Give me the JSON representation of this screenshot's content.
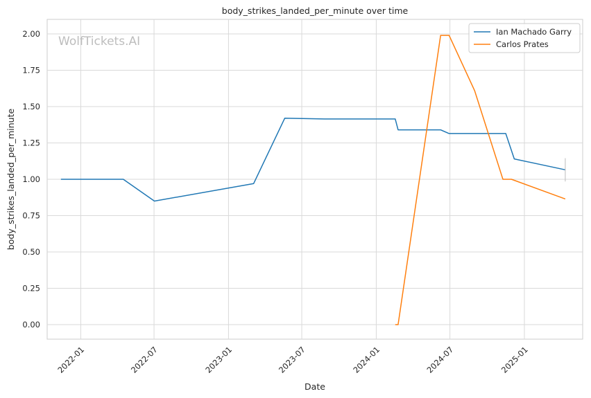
{
  "chart_data": {
    "type": "line",
    "title": "body_strikes_landed_per_minute over time",
    "xlabel": "Date",
    "ylabel": "body_strikes_landed_per_minute",
    "watermark": "WolfTickets.AI",
    "ylim": [
      -0.1,
      2.1
    ],
    "yticks": [
      0.0,
      0.25,
      0.5,
      0.75,
      1.0,
      1.25,
      1.5,
      1.75,
      2.0
    ],
    "ytick_labels": [
      "0.00",
      "0.25",
      "0.50",
      "0.75",
      "1.00",
      "1.25",
      "1.50",
      "1.75",
      "2.00"
    ],
    "xlim": [
      "2021-10-10",
      "2025-05-25"
    ],
    "xticks": [
      "2022-01-01",
      "2022-07-01",
      "2023-01-01",
      "2023-07-01",
      "2024-01-01",
      "2024-07-01",
      "2025-01-01"
    ],
    "xtick_labels": [
      "2022-01",
      "2022-07",
      "2023-01",
      "2023-07",
      "2024-01",
      "2024-07",
      "2025-01"
    ],
    "grid": true,
    "legend_position": "top-right",
    "series": [
      {
        "name": "Ian Machado Garry",
        "color": "#1f77b4",
        "points": [
          [
            "2021-11-13",
            1.0
          ],
          [
            "2022-04-16",
            1.0
          ],
          [
            "2022-07-02",
            0.85
          ],
          [
            "2023-03-04",
            0.97
          ],
          [
            "2023-05-20",
            1.42
          ],
          [
            "2023-08-26",
            1.415
          ],
          [
            "2024-02-17",
            1.415
          ],
          [
            "2024-02-24",
            1.34
          ],
          [
            "2024-06-08",
            1.34
          ],
          [
            "2024-06-29",
            1.315
          ],
          [
            "2024-11-16",
            1.315
          ],
          [
            "2024-12-07",
            1.14
          ],
          [
            "2025-04-12",
            1.065
          ]
        ]
      },
      {
        "name": "Carlos Prates",
        "color": "#ff7f0e",
        "points": [
          [
            "2024-02-17",
            0.0
          ],
          [
            "2024-02-24",
            0.0
          ],
          [
            "2024-06-08",
            1.99
          ],
          [
            "2024-06-29",
            1.99
          ],
          [
            "2024-08-31",
            1.61
          ],
          [
            "2024-11-09",
            1.0
          ],
          [
            "2024-11-30",
            1.0
          ],
          [
            "2025-04-12",
            0.865
          ]
        ]
      }
    ]
  }
}
